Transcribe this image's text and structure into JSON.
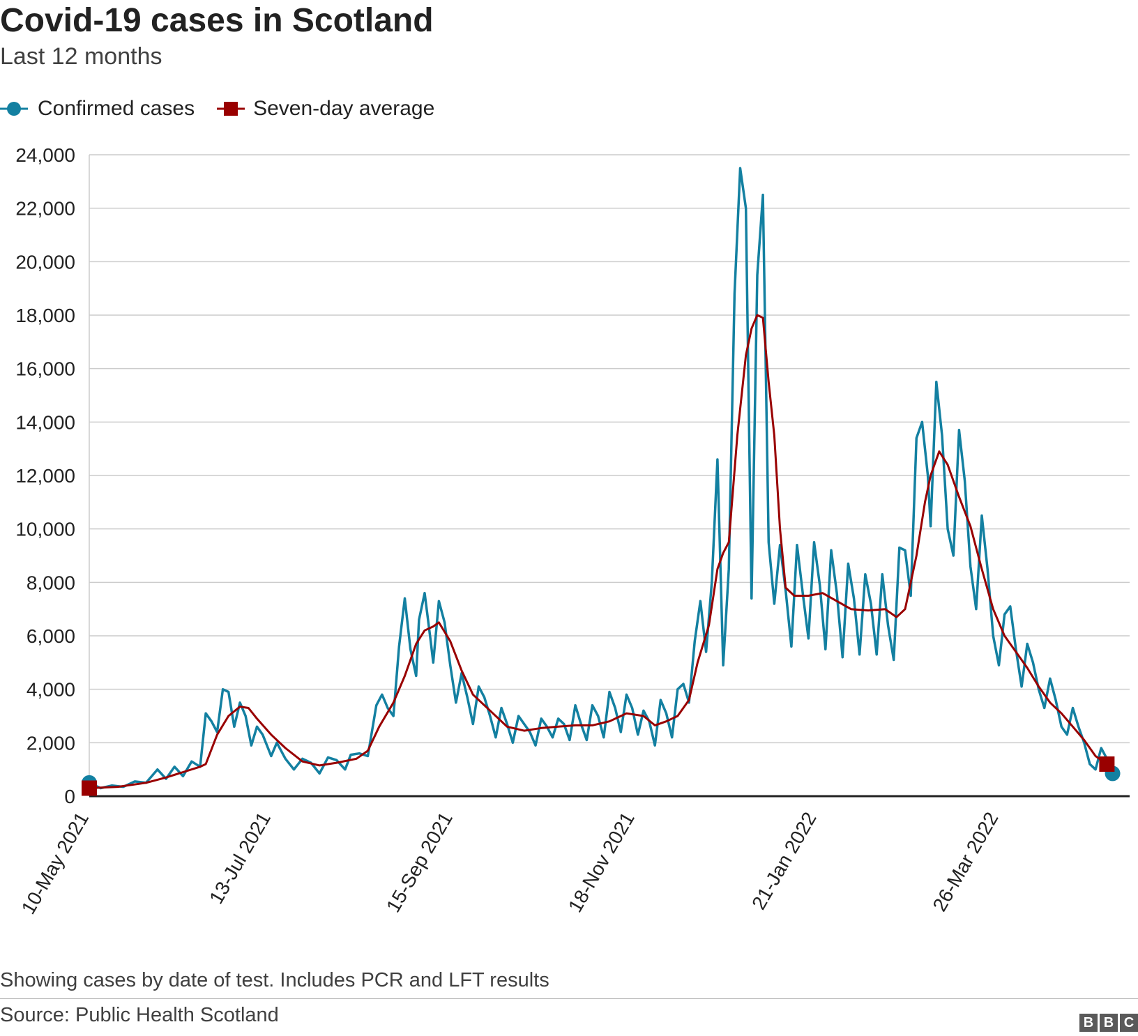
{
  "title": "Covid-19 cases in Scotland",
  "subtitle": "Last 12 months",
  "legend": [
    {
      "label": "Confirmed cases",
      "color": "#1380a1",
      "icon": "circle"
    },
    {
      "label": "Seven-day average",
      "color": "#990000",
      "icon": "square"
    }
  ],
  "footer": {
    "note": "Showing cases by date of test. Includes PCR and LFT results",
    "source": "Source: Public Health Scotland",
    "logo": [
      "B",
      "B",
      "C"
    ]
  },
  "chart_data": {
    "type": "line",
    "title": "Covid-19 cases in Scotland",
    "subtitle": "Last 12 months",
    "xlabel": "",
    "ylabel": "",
    "ylim": [
      0,
      24000
    ],
    "yticks": [
      0,
      2000,
      4000,
      6000,
      8000,
      10000,
      12000,
      14000,
      16000,
      18000,
      20000,
      22000,
      24000
    ],
    "ytick_labels": [
      "0",
      "2,000",
      "4,000",
      "6,000",
      "8,000",
      "10,000",
      "12,000",
      "14,000",
      "16,000",
      "18,000",
      "20,000",
      "22,000",
      "24,000"
    ],
    "xlim": [
      "2021-05-10",
      "2022-05-11"
    ],
    "xticks": [
      {
        "date": "2021-05-10",
        "label": "10-May 2021"
      },
      {
        "date": "2021-07-13",
        "label": "13-Jul 2021"
      },
      {
        "date": "2021-09-15",
        "label": "15-Sep 2021"
      },
      {
        "date": "2021-11-18",
        "label": "18-Nov 2021"
      },
      {
        "date": "2022-01-21",
        "label": "21-Jan 2022"
      },
      {
        "date": "2022-03-26",
        "label": "26-Mar 2022"
      }
    ],
    "grid": true,
    "legend_position": "top-left",
    "series": [
      {
        "name": "Confirmed cases",
        "color": "#1380a1",
        "points": [
          [
            "2021-05-10",
            500
          ],
          [
            "2021-05-14",
            300
          ],
          [
            "2021-05-18",
            400
          ],
          [
            "2021-05-22",
            350
          ],
          [
            "2021-05-26",
            550
          ],
          [
            "2021-05-30",
            500
          ],
          [
            "2021-06-03",
            1000
          ],
          [
            "2021-06-06",
            650
          ],
          [
            "2021-06-09",
            1100
          ],
          [
            "2021-06-12",
            750
          ],
          [
            "2021-06-15",
            1300
          ],
          [
            "2021-06-18",
            1100
          ],
          [
            "2021-06-20",
            3100
          ],
          [
            "2021-06-22",
            2800
          ],
          [
            "2021-06-24",
            2400
          ],
          [
            "2021-06-26",
            4000
          ],
          [
            "2021-06-28",
            3900
          ],
          [
            "2021-06-30",
            2600
          ],
          [
            "2021-07-02",
            3500
          ],
          [
            "2021-07-04",
            3000
          ],
          [
            "2021-07-06",
            1900
          ],
          [
            "2021-07-08",
            2600
          ],
          [
            "2021-07-10",
            2300
          ],
          [
            "2021-07-13",
            1500
          ],
          [
            "2021-07-15",
            2000
          ],
          [
            "2021-07-18",
            1400
          ],
          [
            "2021-07-21",
            1000
          ],
          [
            "2021-07-24",
            1400
          ],
          [
            "2021-07-27",
            1250
          ],
          [
            "2021-07-30",
            850
          ],
          [
            "2021-08-02",
            1450
          ],
          [
            "2021-08-05",
            1350
          ],
          [
            "2021-08-08",
            1000
          ],
          [
            "2021-08-10",
            1550
          ],
          [
            "2021-08-13",
            1600
          ],
          [
            "2021-08-16",
            1500
          ],
          [
            "2021-08-19",
            3400
          ],
          [
            "2021-08-21",
            3800
          ],
          [
            "2021-08-23",
            3300
          ],
          [
            "2021-08-25",
            3000
          ],
          [
            "2021-08-27",
            5600
          ],
          [
            "2021-08-29",
            7400
          ],
          [
            "2021-08-31",
            5500
          ],
          [
            "2021-09-02",
            4500
          ],
          [
            "2021-09-03",
            6600
          ],
          [
            "2021-09-05",
            7600
          ],
          [
            "2021-09-07",
            5900
          ],
          [
            "2021-09-08",
            5000
          ],
          [
            "2021-09-10",
            7300
          ],
          [
            "2021-09-12",
            6500
          ],
          [
            "2021-09-14",
            4900
          ],
          [
            "2021-09-16",
            3500
          ],
          [
            "2021-09-18",
            4600
          ],
          [
            "2021-09-20",
            3700
          ],
          [
            "2021-09-22",
            2700
          ],
          [
            "2021-09-24",
            4100
          ],
          [
            "2021-09-26",
            3700
          ],
          [
            "2021-09-28",
            3000
          ],
          [
            "2021-09-30",
            2200
          ],
          [
            "2021-10-02",
            3300
          ],
          [
            "2021-10-04",
            2700
          ],
          [
            "2021-10-06",
            2000
          ],
          [
            "2021-10-08",
            3000
          ],
          [
            "2021-10-10",
            2700
          ],
          [
            "2021-10-12",
            2400
          ],
          [
            "2021-10-14",
            1900
          ],
          [
            "2021-10-16",
            2900
          ],
          [
            "2021-10-18",
            2600
          ],
          [
            "2021-10-20",
            2200
          ],
          [
            "2021-10-22",
            2900
          ],
          [
            "2021-10-24",
            2700
          ],
          [
            "2021-10-26",
            2100
          ],
          [
            "2021-10-28",
            3400
          ],
          [
            "2021-10-30",
            2700
          ],
          [
            "2021-11-01",
            2100
          ],
          [
            "2021-11-03",
            3400
          ],
          [
            "2021-11-05",
            3000
          ],
          [
            "2021-11-07",
            2200
          ],
          [
            "2021-11-09",
            3900
          ],
          [
            "2021-11-11",
            3300
          ],
          [
            "2021-11-13",
            2400
          ],
          [
            "2021-11-15",
            3800
          ],
          [
            "2021-11-17",
            3300
          ],
          [
            "2021-11-19",
            2300
          ],
          [
            "2021-11-21",
            3200
          ],
          [
            "2021-11-23",
            2800
          ],
          [
            "2021-11-25",
            1900
          ],
          [
            "2021-11-27",
            3600
          ],
          [
            "2021-11-29",
            3100
          ],
          [
            "2021-12-01",
            2200
          ],
          [
            "2021-12-03",
            4000
          ],
          [
            "2021-12-05",
            4200
          ],
          [
            "2021-12-07",
            3500
          ],
          [
            "2021-12-09",
            5800
          ],
          [
            "2021-12-11",
            7300
          ],
          [
            "2021-12-13",
            5400
          ],
          [
            "2021-12-15",
            8000
          ],
          [
            "2021-12-17",
            12600
          ],
          [
            "2021-12-19",
            4900
          ],
          [
            "2021-12-21",
            8500
          ],
          [
            "2021-12-23",
            18800
          ],
          [
            "2021-12-25",
            23500
          ],
          [
            "2021-12-27",
            22000
          ],
          [
            "2021-12-29",
            7400
          ],
          [
            "2021-12-31",
            19500
          ],
          [
            "2022-01-02",
            22500
          ],
          [
            "2022-01-04",
            9500
          ],
          [
            "2022-01-06",
            7200
          ],
          [
            "2022-01-08",
            9400
          ],
          [
            "2022-01-10",
            7700
          ],
          [
            "2022-01-12",
            5600
          ],
          [
            "2022-01-14",
            9400
          ],
          [
            "2022-01-16",
            7600
          ],
          [
            "2022-01-18",
            5900
          ],
          [
            "2022-01-20",
            9500
          ],
          [
            "2022-01-22",
            7900
          ],
          [
            "2022-01-24",
            5500
          ],
          [
            "2022-01-26",
            9200
          ],
          [
            "2022-01-28",
            7600
          ],
          [
            "2022-01-30",
            5200
          ],
          [
            "2022-02-01",
            8700
          ],
          [
            "2022-02-03",
            7400
          ],
          [
            "2022-02-05",
            5300
          ],
          [
            "2022-02-07",
            8300
          ],
          [
            "2022-02-09",
            7200
          ],
          [
            "2022-02-11",
            5300
          ],
          [
            "2022-02-13",
            8300
          ],
          [
            "2022-02-15",
            6400
          ],
          [
            "2022-02-17",
            5100
          ],
          [
            "2022-02-19",
            9300
          ],
          [
            "2022-02-21",
            9200
          ],
          [
            "2022-02-23",
            7500
          ],
          [
            "2022-02-25",
            13400
          ],
          [
            "2022-02-27",
            14000
          ],
          [
            "2022-03-01",
            12000
          ],
          [
            "2022-03-02",
            10100
          ],
          [
            "2022-03-04",
            15500
          ],
          [
            "2022-03-06",
            13500
          ],
          [
            "2022-03-08",
            10000
          ],
          [
            "2022-03-10",
            9000
          ],
          [
            "2022-03-12",
            13700
          ],
          [
            "2022-03-14",
            11800
          ],
          [
            "2022-03-16",
            8600
          ],
          [
            "2022-03-18",
            7000
          ],
          [
            "2022-03-20",
            10500
          ],
          [
            "2022-03-22",
            8500
          ],
          [
            "2022-03-24",
            6000
          ],
          [
            "2022-03-26",
            4900
          ],
          [
            "2022-03-28",
            6800
          ],
          [
            "2022-03-30",
            7100
          ],
          [
            "2022-04-01",
            5500
          ],
          [
            "2022-04-03",
            4100
          ],
          [
            "2022-04-05",
            5700
          ],
          [
            "2022-04-07",
            5000
          ],
          [
            "2022-04-09",
            4000
          ],
          [
            "2022-04-11",
            3300
          ],
          [
            "2022-04-13",
            4400
          ],
          [
            "2022-04-15",
            3600
          ],
          [
            "2022-04-17",
            2600
          ],
          [
            "2022-04-19",
            2300
          ],
          [
            "2022-04-21",
            3300
          ],
          [
            "2022-04-23",
            2600
          ],
          [
            "2022-04-25",
            2000
          ],
          [
            "2022-04-27",
            1200
          ],
          [
            "2022-04-29",
            1000
          ],
          [
            "2022-05-01",
            1800
          ],
          [
            "2022-05-03",
            1400
          ],
          [
            "2022-05-05",
            850
          ]
        ]
      },
      {
        "name": "Seven-day average",
        "color": "#990000",
        "points": [
          [
            "2021-05-10",
            300
          ],
          [
            "2021-05-20",
            350
          ],
          [
            "2021-05-30",
            500
          ],
          [
            "2021-06-06",
            700
          ],
          [
            "2021-06-12",
            900
          ],
          [
            "2021-06-18",
            1100
          ],
          [
            "2021-06-20",
            1200
          ],
          [
            "2021-06-24",
            2300
          ],
          [
            "2021-06-28",
            3000
          ],
          [
            "2021-07-02",
            3350
          ],
          [
            "2021-07-05",
            3300
          ],
          [
            "2021-07-08",
            2900
          ],
          [
            "2021-07-13",
            2300
          ],
          [
            "2021-07-18",
            1800
          ],
          [
            "2021-07-24",
            1300
          ],
          [
            "2021-07-30",
            1150
          ],
          [
            "2021-08-05",
            1250
          ],
          [
            "2021-08-12",
            1400
          ],
          [
            "2021-08-16",
            1700
          ],
          [
            "2021-08-20",
            2600
          ],
          [
            "2021-08-25",
            3500
          ],
          [
            "2021-08-29",
            4500
          ],
          [
            "2021-09-02",
            5700
          ],
          [
            "2021-09-05",
            6200
          ],
          [
            "2021-09-08",
            6350
          ],
          [
            "2021-09-10",
            6500
          ],
          [
            "2021-09-14",
            5800
          ],
          [
            "2021-09-18",
            4700
          ],
          [
            "2021-09-22",
            3800
          ],
          [
            "2021-09-28",
            3200
          ],
          [
            "2021-10-04",
            2600
          ],
          [
            "2021-10-10",
            2450
          ],
          [
            "2021-10-16",
            2550
          ],
          [
            "2021-10-22",
            2600
          ],
          [
            "2021-10-28",
            2650
          ],
          [
            "2021-11-03",
            2650
          ],
          [
            "2021-11-09",
            2800
          ],
          [
            "2021-11-15",
            3100
          ],
          [
            "2021-11-21",
            3000
          ],
          [
            "2021-11-25",
            2650
          ],
          [
            "2021-11-29",
            2800
          ],
          [
            "2021-12-03",
            3000
          ],
          [
            "2021-12-07",
            3600
          ],
          [
            "2021-12-10",
            5000
          ],
          [
            "2021-12-14",
            6400
          ],
          [
            "2021-12-17",
            8500
          ],
          [
            "2021-12-19",
            9100
          ],
          [
            "2021-12-21",
            9500
          ],
          [
            "2021-12-24",
            13500
          ],
          [
            "2021-12-27",
            16500
          ],
          [
            "2021-12-29",
            17500
          ],
          [
            "2021-12-31",
            18000
          ],
          [
            "2022-01-02",
            17900
          ],
          [
            "2022-01-04",
            15500
          ],
          [
            "2022-01-06",
            13500
          ],
          [
            "2022-01-08",
            10000
          ],
          [
            "2022-01-10",
            7800
          ],
          [
            "2022-01-13",
            7500
          ],
          [
            "2022-01-18",
            7500
          ],
          [
            "2022-01-23",
            7600
          ],
          [
            "2022-01-28",
            7300
          ],
          [
            "2022-02-02",
            7000
          ],
          [
            "2022-02-08",
            6950
          ],
          [
            "2022-02-14",
            7000
          ],
          [
            "2022-02-18",
            6700
          ],
          [
            "2022-02-21",
            7000
          ],
          [
            "2022-02-25",
            9000
          ],
          [
            "2022-02-28",
            11000
          ],
          [
            "2022-03-02",
            12000
          ],
          [
            "2022-03-05",
            12900
          ],
          [
            "2022-03-08",
            12400
          ],
          [
            "2022-03-12",
            11200
          ],
          [
            "2022-03-16",
            10100
          ],
          [
            "2022-03-20",
            8500
          ],
          [
            "2022-03-24",
            7000
          ],
          [
            "2022-03-28",
            6000
          ],
          [
            "2022-04-01",
            5400
          ],
          [
            "2022-04-05",
            4800
          ],
          [
            "2022-04-09",
            4100
          ],
          [
            "2022-04-13",
            3500
          ],
          [
            "2022-04-17",
            3100
          ],
          [
            "2022-04-21",
            2600
          ],
          [
            "2022-04-25",
            2100
          ],
          [
            "2022-04-29",
            1500
          ],
          [
            "2022-05-03",
            1200
          ]
        ]
      }
    ]
  }
}
